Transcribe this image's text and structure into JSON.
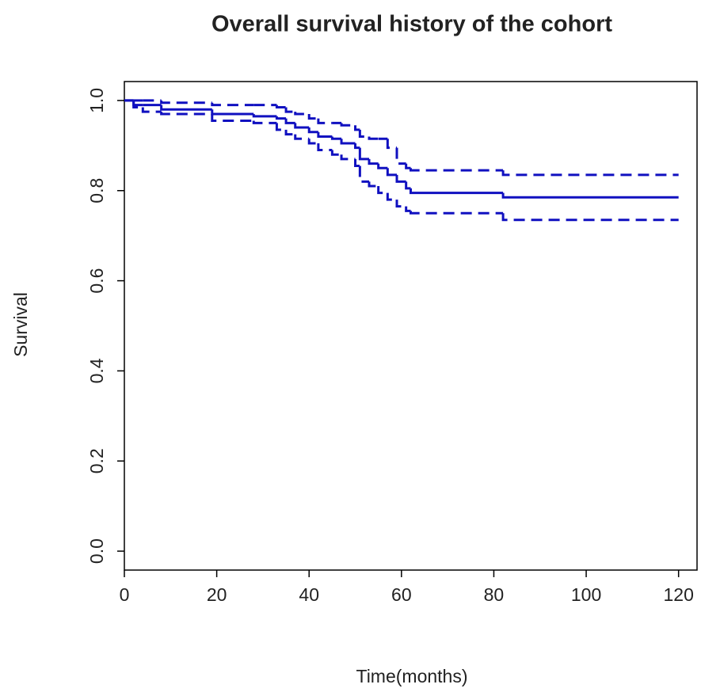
{
  "chart_data": {
    "type": "step",
    "title": "Overall survival history of the cohort",
    "x_label": "Time(months)",
    "y_label": "Survival",
    "x": [
      0,
      2,
      4,
      8,
      19,
      28,
      33,
      35,
      37,
      40,
      42,
      45,
      47,
      50,
      51,
      53,
      55,
      57,
      59,
      61,
      62,
      82,
      120
    ],
    "series": [
      {
        "color": "#1010c0",
        "dashed": false,
        "values": [
          1.0,
          0.99,
          0.99,
          0.98,
          0.97,
          0.965,
          0.96,
          0.95,
          0.94,
          0.93,
          0.92,
          0.915,
          0.905,
          0.895,
          0.87,
          0.86,
          0.85,
          0.835,
          0.82,
          0.805,
          0.795,
          0.785,
          0.785
        ]
      },
      {
        "color": "#1010c0",
        "dashed": true,
        "values": [
          1.0,
          1.0,
          1.0,
          0.995,
          0.99,
          0.99,
          0.985,
          0.975,
          0.97,
          0.96,
          0.95,
          0.95,
          0.945,
          0.935,
          0.92,
          0.915,
          0.915,
          0.895,
          0.86,
          0.85,
          0.845,
          0.835,
          0.835
        ]
      },
      {
        "color": "#1010c0",
        "dashed": true,
        "values": [
          1.0,
          0.985,
          0.975,
          0.97,
          0.955,
          0.95,
          0.935,
          0.925,
          0.915,
          0.905,
          0.89,
          0.88,
          0.87,
          0.855,
          0.82,
          0.81,
          0.795,
          0.78,
          0.765,
          0.755,
          0.75,
          0.735,
          0.735
        ]
      }
    ],
    "xlim": [
      0,
      124
    ],
    "ylim": [
      -0.042,
      1.042
    ],
    "xticks": [
      0,
      20,
      40,
      60,
      80,
      100,
      120
    ],
    "yticks": [
      {
        "value": 0,
        "label": "0.0"
      },
      {
        "value": 0.2,
        "label": "0.2"
      },
      {
        "value": 0.4,
        "label": "0.4"
      },
      {
        "value": 0.6,
        "label": "0.6"
      },
      {
        "value": 0.8,
        "label": "0.8"
      },
      {
        "value": 1,
        "label": "1.0"
      }
    ]
  }
}
